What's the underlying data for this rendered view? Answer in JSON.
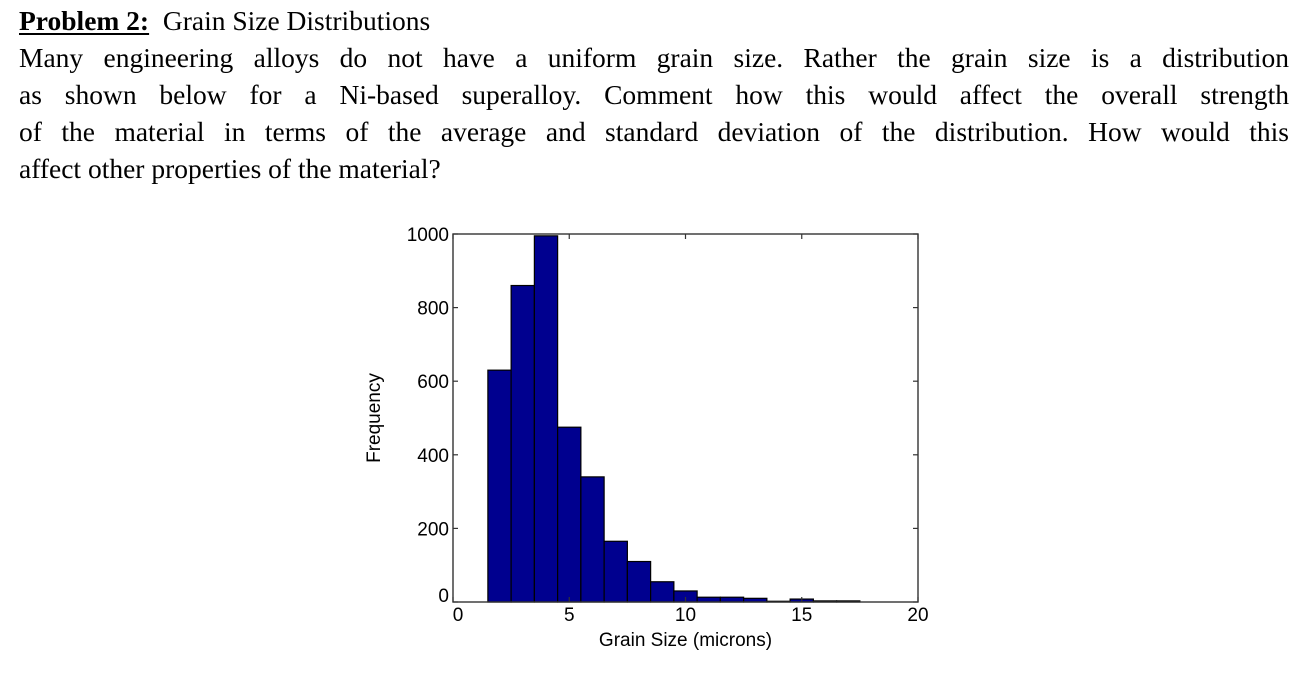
{
  "problem": {
    "label": "Problem 2:",
    "title": "Grain Size Distributions",
    "lines": [
      "Many engineering alloys do not have a uniform grain size.  Rather the grain size is a distribution",
      "as shown below for a Ni-based superalloy.  Comment how this would affect the overall strength",
      "of the material in terms of the average and standard deviation of the distribution.  How would this",
      "affect other properties of the material?"
    ]
  },
  "chart_data": {
    "type": "bar",
    "title": "",
    "xlabel": "Grain Size (microns)",
    "ylabel": "Frequency",
    "xlim": [
      0,
      20
    ],
    "ylim": [
      0,
      1000
    ],
    "xticks": [
      0,
      5,
      10,
      15,
      20
    ],
    "yticks": [
      0,
      200,
      400,
      600,
      800,
      1000
    ],
    "bin_width": 1,
    "bar_color": "#00008f",
    "grid": false,
    "legend": null,
    "categories": [
      2,
      3,
      4,
      5,
      6,
      7,
      8,
      9,
      10,
      11,
      12,
      13,
      14,
      15,
      16,
      17
    ],
    "values": [
      630,
      860,
      995,
      475,
      340,
      165,
      110,
      55,
      30,
      13,
      13,
      10,
      2,
      8,
      3,
      3
    ]
  }
}
